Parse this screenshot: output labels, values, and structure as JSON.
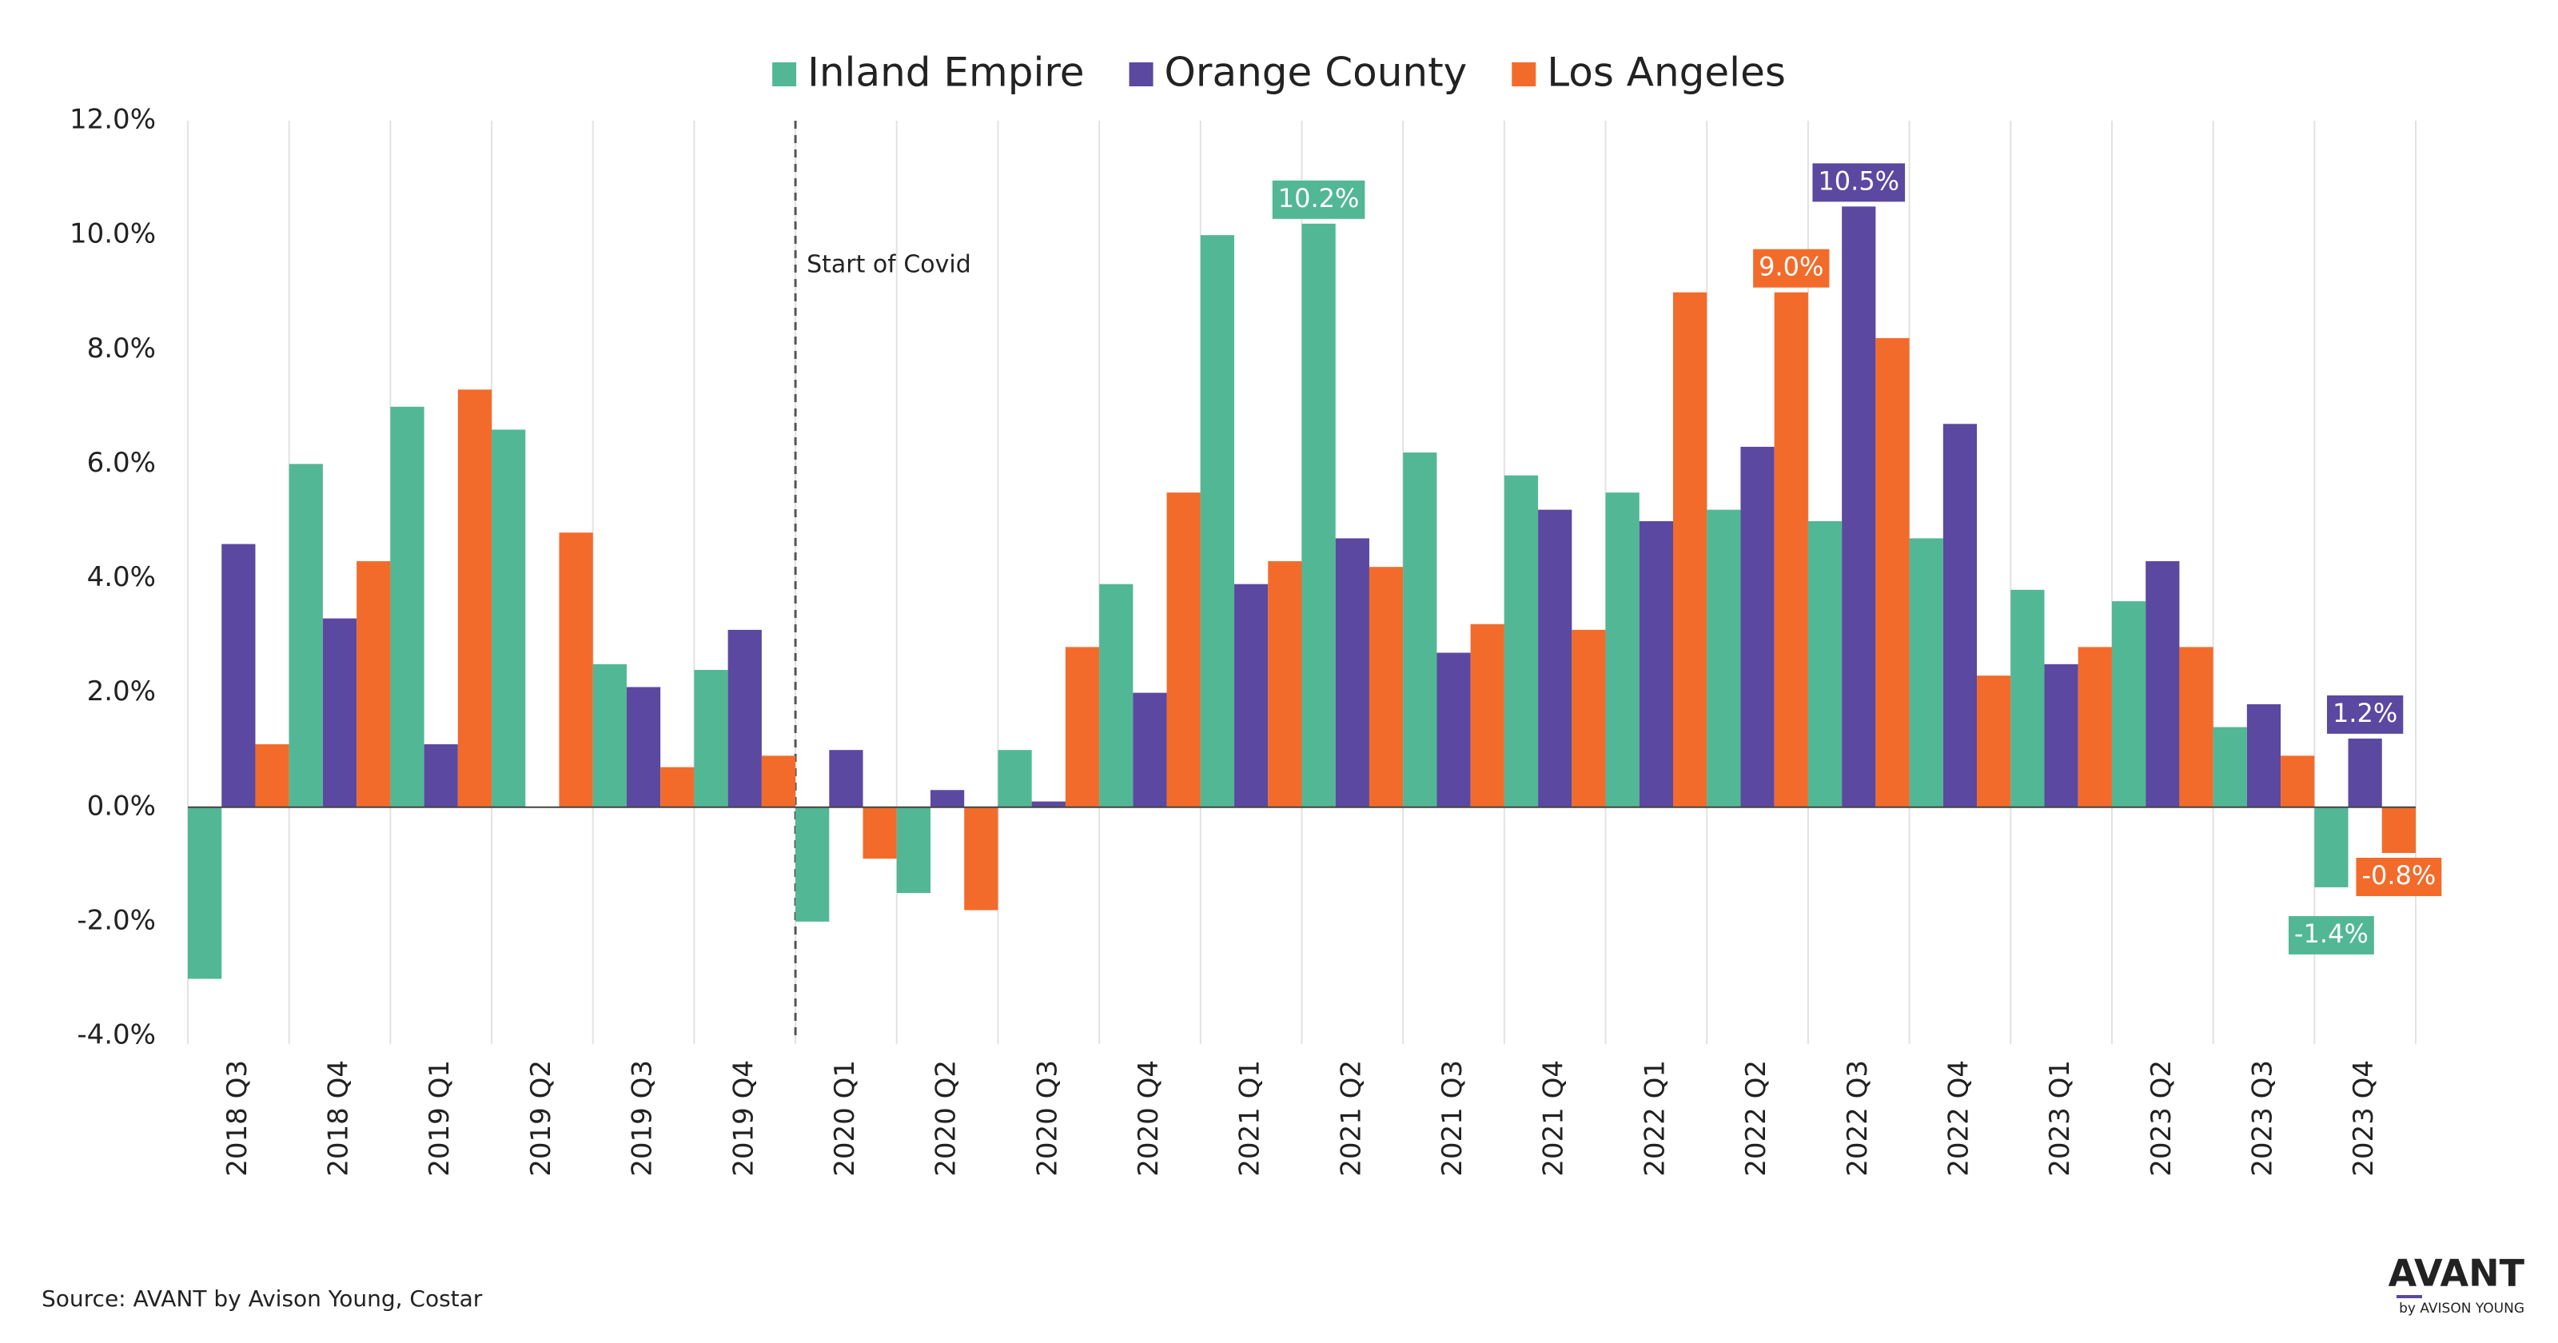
{
  "chart_data": {
    "type": "bar",
    "categories": [
      "2018 Q3",
      "2018 Q4",
      "2019 Q1",
      "2019 Q2",
      "2019 Q3",
      "2019 Q4",
      "2020 Q1",
      "2020 Q2",
      "2020 Q3",
      "2020 Q4",
      "2021 Q1",
      "2021 Q2",
      "2021 Q3",
      "2021 Q4",
      "2022 Q1",
      "2022 Q2",
      "2022 Q3",
      "2022 Q4",
      "2023 Q1",
      "2023 Q2",
      "2023 Q3",
      "2023 Q4"
    ],
    "series": [
      {
        "name": "Inland Empire",
        "color": "#52b795",
        "values": [
          -3.0,
          6.0,
          7.0,
          6.6,
          2.5,
          2.4,
          -2.0,
          -1.5,
          1.0,
          3.9,
          10.0,
          10.2,
          6.2,
          5.8,
          5.5,
          5.2,
          5.0,
          4.7,
          3.8,
          3.6,
          1.4,
          -1.4
        ],
        "value_labels": [
          null,
          null,
          null,
          null,
          null,
          null,
          null,
          null,
          null,
          null,
          null,
          "10.2%",
          null,
          null,
          null,
          null,
          null,
          null,
          null,
          null,
          null,
          "-1.4%"
        ]
      },
      {
        "name": "Orange County",
        "color": "#5b48a0",
        "values": [
          4.6,
          3.3,
          1.1,
          0,
          2.1,
          3.1,
          1.0,
          0.3,
          0.1,
          2.0,
          3.9,
          4.7,
          2.7,
          5.2,
          5.0,
          6.3,
          10.5,
          6.7,
          2.5,
          4.3,
          1.8,
          1.2
        ],
        "value_labels": [
          null,
          null,
          null,
          null,
          null,
          null,
          null,
          null,
          null,
          null,
          null,
          null,
          null,
          null,
          null,
          null,
          "10.5%",
          null,
          null,
          null,
          null,
          "1.2%"
        ]
      },
      {
        "name": "Los Angeles",
        "color": "#f26b2b",
        "values": [
          1.1,
          4.3,
          7.3,
          4.8,
          0.7,
          0.9,
          -0.9,
          -1.8,
          2.8,
          5.5,
          4.3,
          4.2,
          3.2,
          3.1,
          9.0,
          9.0,
          8.2,
          2.3,
          2.8,
          2.8,
          0.9,
          -0.8
        ],
        "value_labels": [
          null,
          null,
          null,
          null,
          null,
          null,
          null,
          null,
          null,
          null,
          null,
          null,
          null,
          null,
          null,
          "9.0%",
          null,
          null,
          null,
          null,
          null,
          "-0.8%"
        ]
      }
    ],
    "ylim": [
      -4,
      12
    ],
    "yticks": [
      {
        "value": -4,
        "label": "-4.0%"
      },
      {
        "value": -2,
        "label": "-2.0%"
      },
      {
        "value": 0,
        "label": "0.0%"
      },
      {
        "value": 2,
        "label": "2.0%"
      },
      {
        "value": 4,
        "label": "4.0%"
      },
      {
        "value": 6,
        "label": "6.0%"
      },
      {
        "value": 8,
        "label": "8.0%"
      },
      {
        "value": 10,
        "label": "10.0%"
      },
      {
        "value": 12,
        "label": "12.0%"
      }
    ],
    "annotation": "Start of Covid",
    "source": "Source: AVANT by Avison Young, Costar",
    "logo": {
      "title": "AVANT",
      "subtitle": "by AVISON YOUNG"
    }
  }
}
